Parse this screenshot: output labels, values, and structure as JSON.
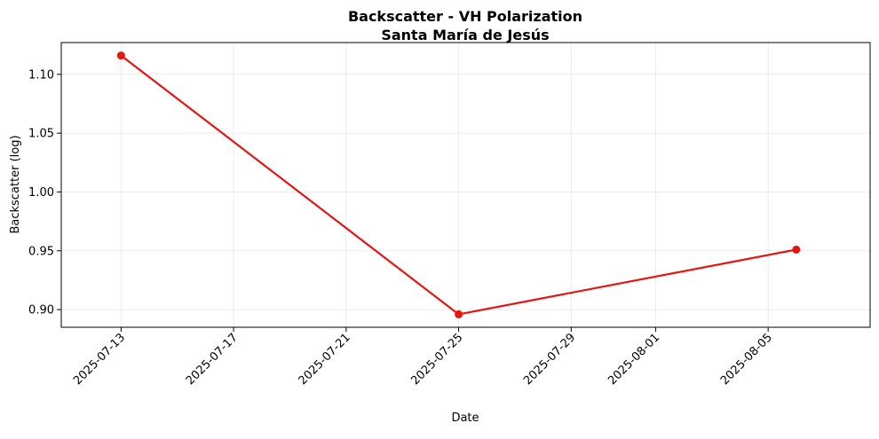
{
  "chart_data": {
    "type": "line",
    "title": "Backscatter - VH Polarization",
    "subtitle": "Santa María de Jesús",
    "xlabel": "Date",
    "ylabel": "Backscatter (log)",
    "x_axis_kind": "date",
    "x_tick_labels": [
      "2025-07-13",
      "2025-07-17",
      "2025-07-21",
      "2025-07-25",
      "2025-07-29",
      "2025-08-01",
      "2025-08-05"
    ],
    "y_tick_labels": [
      "0.90",
      "0.95",
      "1.00",
      "1.05",
      "1.10"
    ],
    "xlim": [
      "2025-07-10T21:00:00",
      "2025-08-08T15:00:00"
    ],
    "ylim": [
      0.885,
      1.127
    ],
    "grid": true,
    "series": [
      {
        "color": "#e6130f",
        "marker": "circle",
        "points": [
          {
            "x": "2025-07-13",
            "y": 1.116
          },
          {
            "x": "2025-07-25",
            "y": 0.896
          },
          {
            "x": "2025-08-06",
            "y": 0.951
          }
        ]
      }
    ]
  }
}
